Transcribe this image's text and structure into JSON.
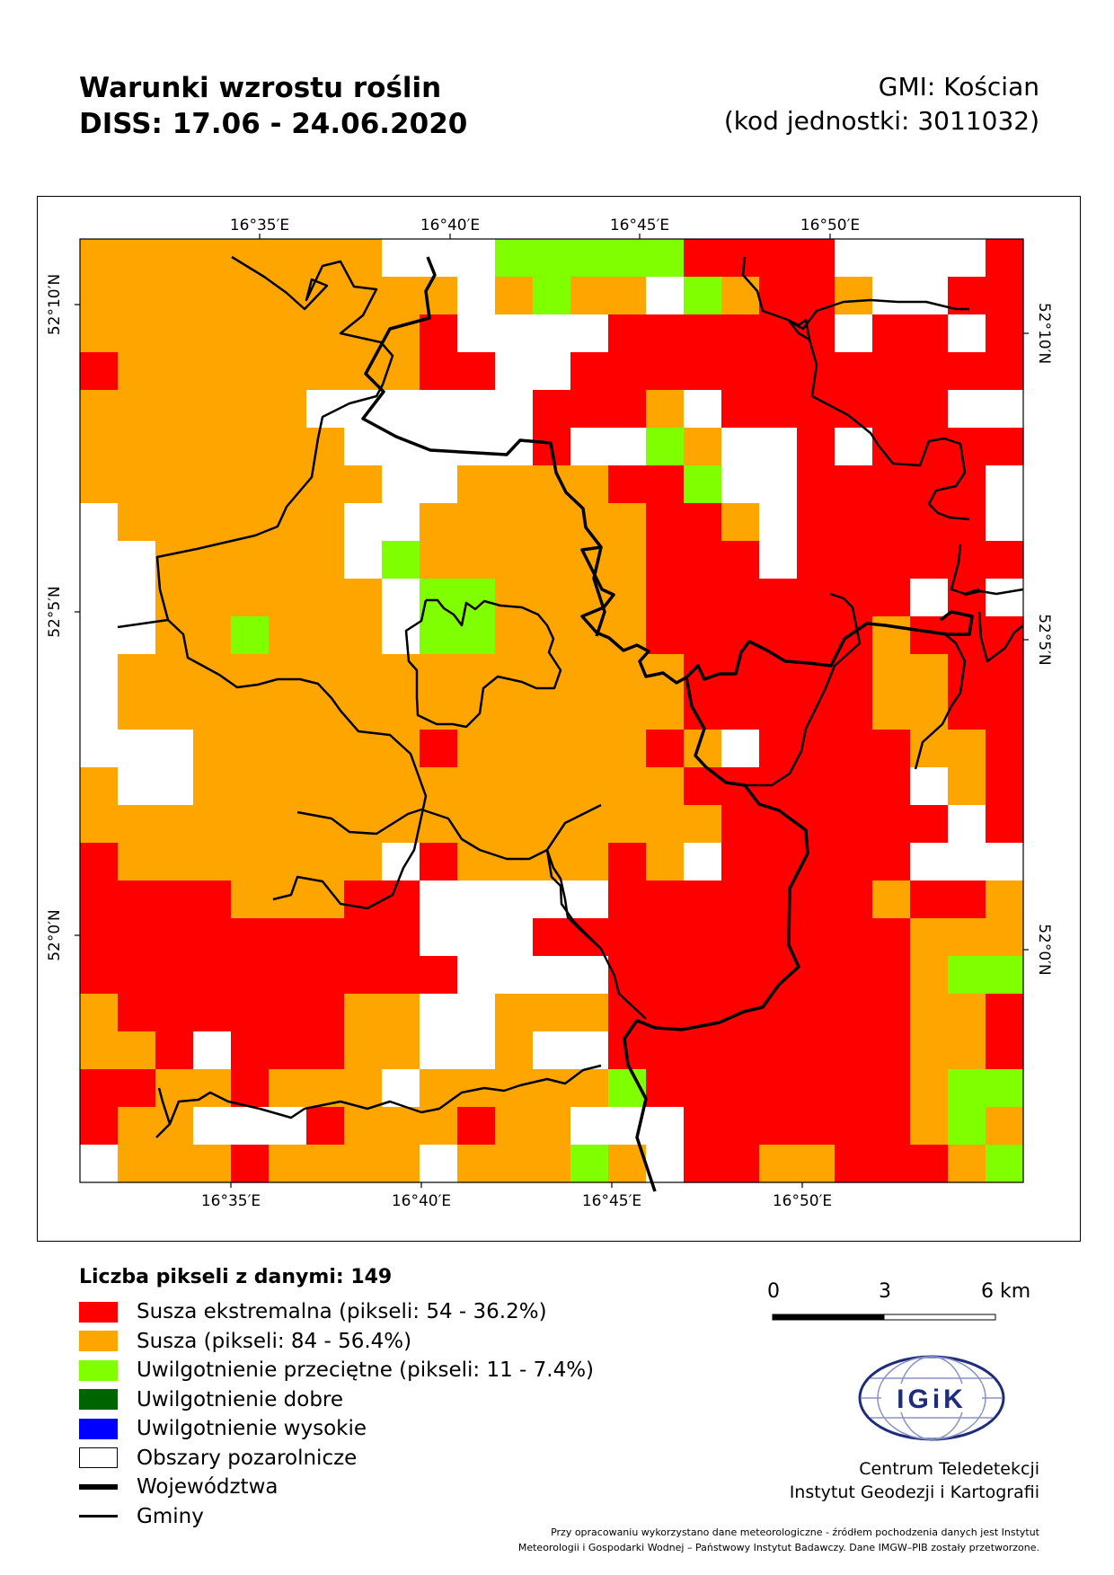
{
  "header": {
    "title_line1": "Warunki wzrostu roślin",
    "title_line2": "DISS: 17.06 - 24.06.2020",
    "unit_line1": "GMI: Kościan",
    "unit_line2": "(kod jednostki: 3011032)"
  },
  "map": {
    "top_ticks": [
      "16°35′E",
      "16°40′E",
      "16°45′E",
      "16°50′E"
    ],
    "bottom_ticks": [
      "16°35′E",
      "16°40′E",
      "16°45′E",
      "16°50′E"
    ],
    "left_ticks": [
      "52°10′N",
      "52°5′N",
      "52°0′N"
    ],
    "right_ticks": [
      "52°10′N",
      "52°5′N",
      "52°0′N"
    ],
    "colors": {
      "extreme_drought": "#ff0000",
      "drought": "#ffa500",
      "average_moisture": "#80ff00",
      "good_moisture": "#006400",
      "high_moisture": "#0000ff",
      "non_agricultural": "#ffffff"
    }
  },
  "legend": {
    "title": "Liczba pikseli z danymi: 149",
    "items": [
      {
        "label": "Susza ekstremalna (pikseli: 54 - 36.2%)",
        "color": "#ff0000",
        "kind": "swatch"
      },
      {
        "label": "Susza (pikseli: 84 - 56.4%)",
        "color": "#ffa500",
        "kind": "swatch"
      },
      {
        "label": "Uwilgotnienie przeciętne (pikseli: 11 - 7.4%)",
        "color": "#80ff00",
        "kind": "swatch"
      },
      {
        "label": "Uwilgotnienie dobre",
        "color": "#006400",
        "kind": "swatch"
      },
      {
        "label": "Uwilgotnienie wysokie",
        "color": "#0000ff",
        "kind": "swatch"
      },
      {
        "label": "Obszary pozarolnicze",
        "color": "#ffffff",
        "kind": "swatch"
      },
      {
        "label": "Województwa",
        "color": "#000000",
        "kind": "thick-line"
      },
      {
        "label": "Gminy",
        "color": "#000000",
        "kind": "thin-line"
      }
    ]
  },
  "scale": {
    "labels": [
      "0",
      "3",
      "6 km"
    ]
  },
  "logo": {
    "text": "IGiK"
  },
  "institution": {
    "line1": "Centrum Teledetekcji",
    "line2": "Instytut Geodezji i Kartografii"
  },
  "footnote": {
    "line1": "Przy opracowaniu wykorzystano dane meteorologiczne - źródłem pochodzenia danych jest Instytut",
    "line2": "Meteorologii i Gospodarki Wodnej – Państwowy Instytut Badawczy. Dane IMGW–PIB zostały przetworzone."
  }
}
